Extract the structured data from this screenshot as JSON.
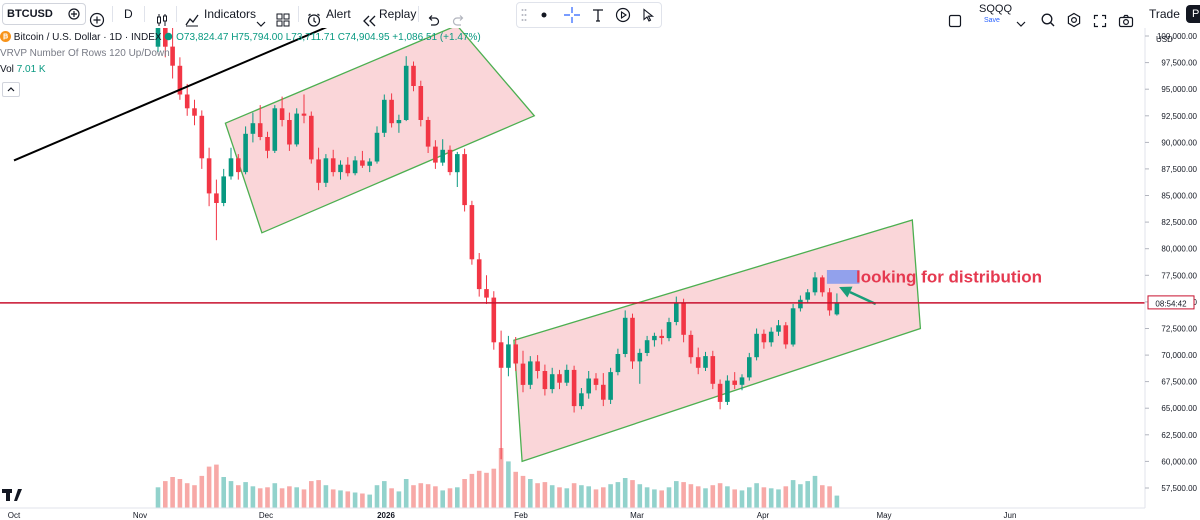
{
  "toolbar": {
    "symbol": "BTCUSD",
    "interval": "D",
    "indicators_label": "Indicators",
    "alert_label": "Alert",
    "replay_label": "Replay",
    "layout_name": "SQQQ",
    "layout_status": "Save",
    "trade_label": "Trade",
    "avatar_letter": "P",
    "icons": [
      "plus-circle-icon",
      "candles-icon",
      "indicators-icon",
      "layouts-icon",
      "alert-clock-icon",
      "replay-icon",
      "undo-icon",
      "redo-icon",
      "dot-icon",
      "crosshair-icon",
      "text-tool-icon",
      "play-circle-icon",
      "cursor-icon",
      "fullscreen-icon",
      "search-icon",
      "gear-icon",
      "expand-icon",
      "camera-icon"
    ]
  },
  "legend": {
    "title": "Bitcoin / U.S. Dollar · 1D · INDEX",
    "open": "O73,824.47",
    "high": "H75,794.00",
    "low": "L73,711.71",
    "close": "C74,904.95",
    "change": "+1,086.51 (+1.47%)",
    "vrvp": "VRVP Number Of Rows 120 Up/Down",
    "vol_label": "Vol",
    "vol_value": "7.01 K"
  },
  "price_axis": {
    "currency": "USD",
    "ticks": [
      "100,000.00",
      "97,500.00",
      "95,000.00",
      "92,500.00",
      "90,000.00",
      "87,500.00",
      "85,000.00",
      "82,500.00",
      "80,000.00",
      "77,500.00",
      "75,000.00",
      "72,500.00",
      "70,000.00",
      "67,500.00",
      "65,000.00",
      "62,500.00",
      "60,000.00",
      "57,500.00"
    ],
    "countdown": "08:54:42"
  },
  "time_axis": {
    "labels": [
      {
        "label": "Oct",
        "bold": false
      },
      {
        "label": "Nov",
        "bold": false
      },
      {
        "label": "Dec",
        "bold": false
      },
      {
        "label": "2026",
        "bold": true
      },
      {
        "label": "Feb",
        "bold": false
      },
      {
        "label": "Mar",
        "bold": false
      },
      {
        "label": "Apr",
        "bold": false
      },
      {
        "label": "May",
        "bold": false
      },
      {
        "label": "Jun",
        "bold": false
      }
    ]
  },
  "annotation": {
    "text": "looking for distribution",
    "color": "#e53950"
  },
  "colors": {
    "up": "#089981",
    "down": "#f23645",
    "vol_up": "#92d2cc",
    "vol_down": "#f7a9a7",
    "channel_fill": "#f8c8cc",
    "channel_stroke": "#4caf50",
    "trendline": "#000000",
    "price_line": "#c8102e"
  },
  "chart_data": {
    "type": "candlestick",
    "symbol": "BTCUSD",
    "interval": "1D",
    "ylim": [
      56000,
      104000
    ],
    "last_price": 74904.95,
    "drawings": [
      {
        "kind": "trendline",
        "points": [
          [
            "2025-10-01",
            88300
          ],
          [
            "2026-01-25",
            107200
          ]
        ]
      },
      {
        "kind": "parallel_channel",
        "corners": [
          [
            "2025-11-22",
            91800
          ],
          [
            "2026-01-18",
            101000
          ],
          [
            "2026-02-06",
            92500
          ],
          [
            "2025-12-01",
            81500
          ]
        ]
      },
      {
        "kind": "parallel_channel",
        "corners": [
          [
            "2026-02-01",
            71400
          ],
          [
            "2026-05-10",
            82700
          ],
          [
            "2026-05-12",
            72500
          ],
          [
            "2026-02-03",
            60000
          ]
        ]
      },
      {
        "kind": "highlight_box",
        "range": [
          [
            "2026-04-19",
            78000
          ],
          [
            "2026-04-27",
            76700
          ]
        ]
      },
      {
        "kind": "arrow",
        "from": [
          "2026-05-01",
          74800
        ],
        "to": [
          "2026-04-22",
          76400
        ]
      }
    ],
    "series": [
      {
        "o": 99000,
        "h": 103500,
        "l": 98500,
        "c": 101000,
        "v": 200
      },
      {
        "o": 101000,
        "h": 103000,
        "l": 98000,
        "c": 99000,
        "v": 260
      },
      {
        "o": 99000,
        "h": 101000,
        "l": 96000,
        "c": 97200,
        "v": 300
      },
      {
        "o": 97200,
        "h": 98000,
        "l": 94000,
        "c": 94500,
        "v": 280
      },
      {
        "o": 94500,
        "h": 95500,
        "l": 92500,
        "c": 93200,
        "v": 240
      },
      {
        "o": 93200,
        "h": 94000,
        "l": 91600,
        "c": 92500,
        "v": 220
      },
      {
        "o": 92500,
        "h": 93000,
        "l": 87500,
        "c": 88500,
        "v": 310
      },
      {
        "o": 88500,
        "h": 89500,
        "l": 84000,
        "c": 85200,
        "v": 400
      },
      {
        "o": 85200,
        "h": 86500,
        "l": 80800,
        "c": 84300,
        "v": 420
      },
      {
        "o": 84300,
        "h": 87500,
        "l": 84000,
        "c": 86800,
        "v": 300
      },
      {
        "o": 86800,
        "h": 89500,
        "l": 86500,
        "c": 88500,
        "v": 260
      },
      {
        "o": 88500,
        "h": 88900,
        "l": 86500,
        "c": 87200,
        "v": 220
      },
      {
        "o": 87200,
        "h": 91500,
        "l": 87000,
        "c": 90800,
        "v": 250
      },
      {
        "o": 90800,
        "h": 92800,
        "l": 90000,
        "c": 91800,
        "v": 210
      },
      {
        "o": 91800,
        "h": 93500,
        "l": 90200,
        "c": 90500,
        "v": 190
      },
      {
        "o": 90500,
        "h": 91000,
        "l": 88500,
        "c": 89200,
        "v": 200
      },
      {
        "o": 89200,
        "h": 93500,
        "l": 89000,
        "c": 93200,
        "v": 240
      },
      {
        "o": 93200,
        "h": 94300,
        "l": 91500,
        "c": 92100,
        "v": 190
      },
      {
        "o": 92100,
        "h": 92800,
        "l": 89200,
        "c": 89800,
        "v": 210
      },
      {
        "o": 89800,
        "h": 93200,
        "l": 89600,
        "c": 92700,
        "v": 200
      },
      {
        "o": 92700,
        "h": 94500,
        "l": 91800,
        "c": 92500,
        "v": 180
      },
      {
        "o": 92500,
        "h": 92900,
        "l": 88000,
        "c": 88400,
        "v": 260
      },
      {
        "o": 88400,
        "h": 89500,
        "l": 85500,
        "c": 86200,
        "v": 270
      },
      {
        "o": 86200,
        "h": 88900,
        "l": 85800,
        "c": 88500,
        "v": 220
      },
      {
        "o": 88500,
        "h": 89300,
        "l": 86800,
        "c": 87200,
        "v": 180
      },
      {
        "o": 87200,
        "h": 88300,
        "l": 86500,
        "c": 87900,
        "v": 170
      },
      {
        "o": 87900,
        "h": 88600,
        "l": 86800,
        "c": 87100,
        "v": 160
      },
      {
        "o": 87100,
        "h": 88700,
        "l": 86900,
        "c": 88300,
        "v": 150
      },
      {
        "o": 88300,
        "h": 89200,
        "l": 87600,
        "c": 87800,
        "v": 140
      },
      {
        "o": 87800,
        "h": 88500,
        "l": 87200,
        "c": 88200,
        "v": 130
      },
      {
        "o": 88200,
        "h": 91500,
        "l": 88000,
        "c": 90900,
        "v": 220
      },
      {
        "o": 90900,
        "h": 94500,
        "l": 90500,
        "c": 94000,
        "v": 260
      },
      {
        "o": 94000,
        "h": 94600,
        "l": 91400,
        "c": 91800,
        "v": 190
      },
      {
        "o": 91800,
        "h": 92600,
        "l": 90900,
        "c": 92100,
        "v": 160
      },
      {
        "o": 92100,
        "h": 98100,
        "l": 92000,
        "c": 97200,
        "v": 280
      },
      {
        "o": 97200,
        "h": 97600,
        "l": 94800,
        "c": 95300,
        "v": 220
      },
      {
        "o": 95300,
        "h": 95800,
        "l": 91500,
        "c": 92100,
        "v": 240
      },
      {
        "o": 92100,
        "h": 92400,
        "l": 89000,
        "c": 89600,
        "v": 230
      },
      {
        "o": 89600,
        "h": 90200,
        "l": 87500,
        "c": 88100,
        "v": 210
      },
      {
        "o": 88100,
        "h": 90300,
        "l": 87800,
        "c": 89300,
        "v": 170
      },
      {
        "o": 89300,
        "h": 89700,
        "l": 86900,
        "c": 87200,
        "v": 190
      },
      {
        "o": 87200,
        "h": 89100,
        "l": 85800,
        "c": 88900,
        "v": 200
      },
      {
        "o": 88900,
        "h": 89400,
        "l": 83500,
        "c": 84100,
        "v": 280
      },
      {
        "o": 84100,
        "h": 84500,
        "l": 78500,
        "c": 79000,
        "v": 330
      },
      {
        "o": 79000,
        "h": 79600,
        "l": 75500,
        "c": 76200,
        "v": 360
      },
      {
        "o": 76200,
        "h": 77500,
        "l": 74800,
        "c": 75400,
        "v": 340
      },
      {
        "o": 75400,
        "h": 76000,
        "l": 70500,
        "c": 71200,
        "v": 380
      },
      {
        "o": 71200,
        "h": 72300,
        "l": 60200,
        "c": 68800,
        "v": 580
      },
      {
        "o": 68800,
        "h": 71800,
        "l": 68000,
        "c": 71000,
        "v": 450
      },
      {
        "o": 71000,
        "h": 71700,
        "l": 68500,
        "c": 69200,
        "v": 350
      },
      {
        "o": 69200,
        "h": 70400,
        "l": 66500,
        "c": 67200,
        "v": 310
      },
      {
        "o": 67200,
        "h": 69900,
        "l": 66800,
        "c": 69400,
        "v": 280
      },
      {
        "o": 69400,
        "h": 70000,
        "l": 67800,
        "c": 68500,
        "v": 240
      },
      {
        "o": 68500,
        "h": 69100,
        "l": 66200,
        "c": 66800,
        "v": 250
      },
      {
        "o": 66800,
        "h": 68800,
        "l": 66400,
        "c": 68200,
        "v": 220
      },
      {
        "o": 68200,
        "h": 68600,
        "l": 66800,
        "c": 67400,
        "v": 200
      },
      {
        "o": 67400,
        "h": 69100,
        "l": 67100,
        "c": 68600,
        "v": 190
      },
      {
        "o": 68600,
        "h": 69000,
        "l": 64600,
        "c": 65200,
        "v": 240
      },
      {
        "o": 65200,
        "h": 66900,
        "l": 64900,
        "c": 66400,
        "v": 220
      },
      {
        "o": 66400,
        "h": 68500,
        "l": 65900,
        "c": 67800,
        "v": 210
      },
      {
        "o": 67800,
        "h": 68300,
        "l": 66700,
        "c": 67200,
        "v": 180
      },
      {
        "o": 67200,
        "h": 68300,
        "l": 65200,
        "c": 65800,
        "v": 200
      },
      {
        "o": 65800,
        "h": 68800,
        "l": 65400,
        "c": 68400,
        "v": 230
      },
      {
        "o": 68400,
        "h": 70600,
        "l": 68100,
        "c": 70100,
        "v": 250
      },
      {
        "o": 70100,
        "h": 74200,
        "l": 69800,
        "c": 73500,
        "v": 290
      },
      {
        "o": 73500,
        "h": 73900,
        "l": 68700,
        "c": 69400,
        "v": 270
      },
      {
        "o": 69400,
        "h": 70600,
        "l": 67300,
        "c": 70200,
        "v": 230
      },
      {
        "o": 70200,
        "h": 71800,
        "l": 69900,
        "c": 71400,
        "v": 200
      },
      {
        "o": 71400,
        "h": 72100,
        "l": 70800,
        "c": 71800,
        "v": 180
      },
      {
        "o": 71800,
        "h": 72400,
        "l": 71000,
        "c": 71600,
        "v": 170
      },
      {
        "o": 71600,
        "h": 73500,
        "l": 71300,
        "c": 73100,
        "v": 200
      },
      {
        "o": 73100,
        "h": 75500,
        "l": 72800,
        "c": 74900,
        "v": 260
      },
      {
        "o": 74900,
        "h": 75300,
        "l": 71200,
        "c": 71900,
        "v": 250
      },
      {
        "o": 71900,
        "h": 72300,
        "l": 69200,
        "c": 69800,
        "v": 230
      },
      {
        "o": 69800,
        "h": 70700,
        "l": 68200,
        "c": 68800,
        "v": 210
      },
      {
        "o": 68800,
        "h": 70300,
        "l": 68500,
        "c": 69900,
        "v": 190
      },
      {
        "o": 69900,
        "h": 70400,
        "l": 66800,
        "c": 67300,
        "v": 220
      },
      {
        "o": 67300,
        "h": 67700,
        "l": 64900,
        "c": 65600,
        "v": 240
      },
      {
        "o": 65600,
        "h": 68100,
        "l": 65300,
        "c": 67600,
        "v": 210
      },
      {
        "o": 67600,
        "h": 68400,
        "l": 66800,
        "c": 67200,
        "v": 180
      },
      {
        "o": 67200,
        "h": 68200,
        "l": 66700,
        "c": 67900,
        "v": 170
      },
      {
        "o": 67900,
        "h": 70200,
        "l": 67600,
        "c": 69800,
        "v": 200
      },
      {
        "o": 69800,
        "h": 72500,
        "l": 69500,
        "c": 72000,
        "v": 240
      },
      {
        "o": 72000,
        "h": 72400,
        "l": 70600,
        "c": 71200,
        "v": 200
      },
      {
        "o": 71200,
        "h": 72600,
        "l": 70800,
        "c": 72200,
        "v": 190
      },
      {
        "o": 72200,
        "h": 73300,
        "l": 71800,
        "c": 72800,
        "v": 180
      },
      {
        "o": 72800,
        "h": 73100,
        "l": 70600,
        "c": 71000,
        "v": 210
      },
      {
        "o": 71000,
        "h": 74800,
        "l": 70800,
        "c": 74400,
        "v": 270
      },
      {
        "o": 74400,
        "h": 75600,
        "l": 74100,
        "c": 75200,
        "v": 230
      },
      {
        "o": 75200,
        "h": 76200,
        "l": 74900,
        "c": 75900,
        "v": 260
      },
      {
        "o": 75900,
        "h": 77800,
        "l": 75600,
        "c": 77300,
        "v": 310
      },
      {
        "o": 77300,
        "h": 77500,
        "l": 75500,
        "c": 75900,
        "v": 220
      },
      {
        "o": 75900,
        "h": 76300,
        "l": 73700,
        "c": 74200,
        "v": 210
      },
      {
        "o": 73824.47,
        "h": 75794.0,
        "l": 73711.71,
        "c": 74904.95,
        "v": 120
      }
    ]
  }
}
